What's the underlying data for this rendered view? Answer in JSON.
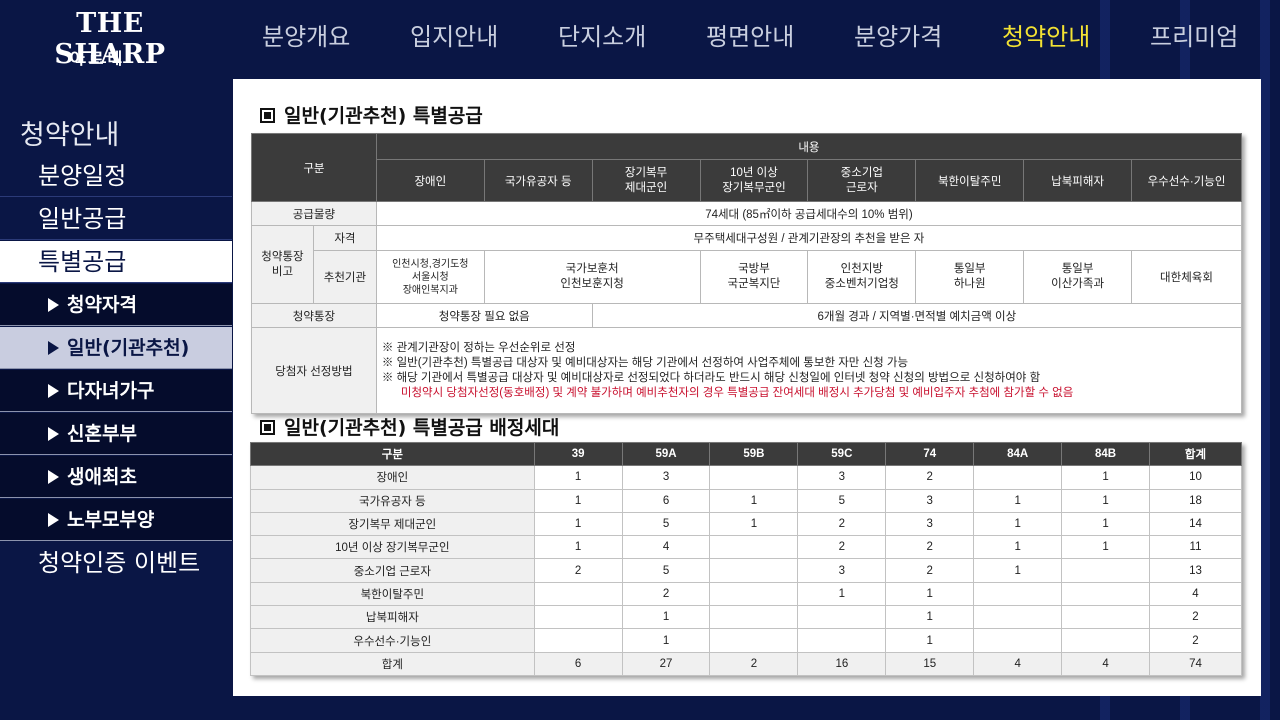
{
  "brand": {
    "name": "THE SHARP",
    "sub": "아르테"
  },
  "topnav": [
    "분양개요",
    "입지안내",
    "단지소개",
    "평면안내",
    "분양가격",
    "청약안내",
    "프리미엄"
  ],
  "sidebar": {
    "title": "청약안내",
    "items": [
      {
        "label": "분양일정"
      },
      {
        "label": "일반공급"
      },
      {
        "label": "특별공급"
      },
      {
        "label": "청약자격"
      },
      {
        "label": "일반(기관추천)"
      },
      {
        "label": "다자녀가구"
      },
      {
        "label": "신혼부부"
      },
      {
        "label": "생애최초"
      },
      {
        "label": "노부모부양"
      },
      {
        "label": "청약인증 이벤트"
      }
    ]
  },
  "section1": {
    "title": "일반(기관추천) 특별공급",
    "hdr_div": "구분",
    "hdr_content": "내용",
    "cols": [
      "장애인",
      "국가유공자 등",
      "장기복무\n제대군인",
      "10년 이상\n장기복무군인",
      "중소기업\n근로자",
      "북한이탈주민",
      "납북피해자",
      "우수선수·기능인"
    ],
    "supply_label": "공급물량",
    "supply_value": "74세대 (85㎡이하 공급세대수의 10% 범위)",
    "remark_label": "청약통장\n비고",
    "qual_label": "자격",
    "qual_value": "무주택세대구성원 / 관계기관장의 추천을 받은 자",
    "agency_label": "추천기관",
    "agencies": [
      "인천시청,경기도청\n서울시청\n장애인복지과",
      "국가보훈처\n인천보훈지청",
      "국방부\n국군복지단",
      "인천지방\n중소벤처기업청",
      "통일부\n하나원",
      "통일부\n이산가족과",
      "대한체육회"
    ],
    "account_label": "청약통장",
    "account_a": "청약통장 필요 없음",
    "account_b": "6개월 경과 / 지역별·면적별 예치금액 이상",
    "method_label": "당첨자 선정방법",
    "notes": [
      "※ 관계기관장이 정하는 우선순위로 선정",
      "※ 일반(기관추천) 특별공급 대상자 및 예비대상자는 해당 기관에서 선정하여 사업주체에 통보한 자만 신청 가능",
      "※ 해당 기관에서 특별공급 대상자 및 예비대상자로 선정되었다 하더라도 반드시 해당 신청일에 인터넷 청약 신청의 방법으로 신청하여야 함"
    ],
    "note_red": "미청약시 당첨자선정(동호배정) 및 계약 불가하며 예비추천자의 경우 특별공급 잔여세대 배정시 추가당첨 및 예비입주자 추첨에 참가할 수 없음"
  },
  "section2": {
    "title": "일반(기관추천) 특별공급 배정세대",
    "headers": [
      "구분",
      "39",
      "59A",
      "59B",
      "59C",
      "74",
      "84A",
      "84B",
      "합계"
    ],
    "rows": [
      [
        "장애인",
        "1",
        "3",
        "",
        "3",
        "2",
        "",
        "1",
        "10"
      ],
      [
        "국가유공자 등",
        "1",
        "6",
        "1",
        "5",
        "3",
        "1",
        "1",
        "18"
      ],
      [
        "장기복무 제대군인",
        "1",
        "5",
        "1",
        "2",
        "3",
        "1",
        "1",
        "14"
      ],
      [
        "10년 이상 장기복무군인",
        "1",
        "4",
        "",
        "2",
        "2",
        "1",
        "1",
        "11"
      ],
      [
        "중소기업 근로자",
        "2",
        "5",
        "",
        "3",
        "2",
        "1",
        "",
        "13"
      ],
      [
        "북한이탈주민",
        "",
        "2",
        "",
        "1",
        "1",
        "",
        "",
        "4"
      ],
      [
        "납북피해자",
        "",
        "1",
        "",
        "",
        "1",
        "",
        "",
        "2"
      ],
      [
        "우수선수·기능인",
        "",
        "1",
        "",
        "",
        "1",
        "",
        "",
        "2"
      ],
      [
        "합계",
        "6",
        "27",
        "2",
        "16",
        "15",
        "4",
        "4",
        "74"
      ]
    ]
  },
  "colors": {
    "navy": "#0a1645",
    "active_nav": "#f3e233",
    "red_note": "#c8102e"
  }
}
